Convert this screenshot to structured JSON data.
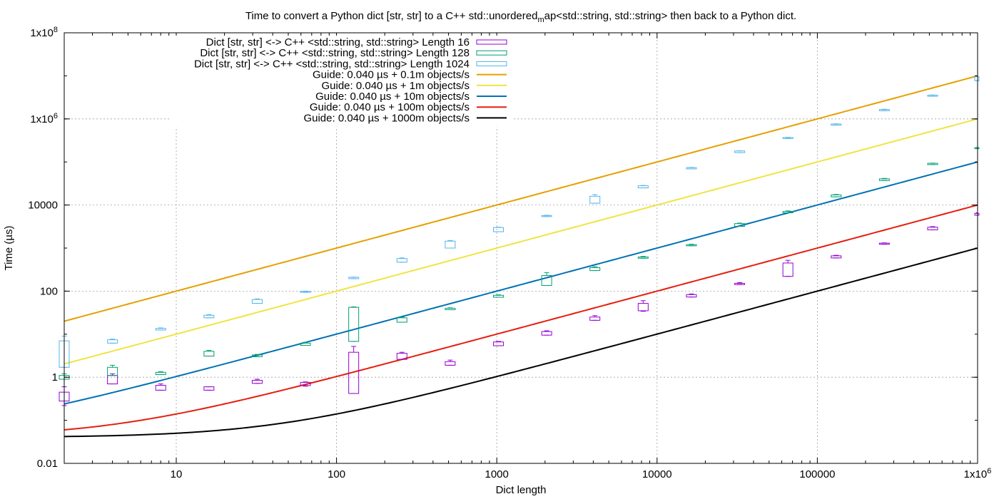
{
  "chart_data": {
    "type": "box",
    "title": "Time to convert a Python dict [str, str] to a C++ std::unordered",
    "title_subscript": "m",
    "title_rest": "ap<std::string, std::string> then back to a Python dict.",
    "xlabel": "Dict length",
    "ylabel": "Time (µs)",
    "x_scale": "log",
    "y_scale": "log",
    "xlim": [
      2,
      1000000
    ],
    "ylim": [
      0.01,
      100000000
    ],
    "grid": true,
    "legend_position": "top-left",
    "x_ticks": [
      {
        "value": 10,
        "label": "10",
        "mant": "",
        "exp": ""
      },
      {
        "value": 100,
        "label": "100",
        "mant": "",
        "exp": ""
      },
      {
        "value": 1000,
        "label": "1000",
        "mant": "",
        "exp": ""
      },
      {
        "value": 10000,
        "label": "10000",
        "mant": "",
        "exp": ""
      },
      {
        "value": 100000,
        "label": "100000",
        "mant": "",
        "exp": ""
      },
      {
        "value": 1000000,
        "label": "",
        "mant": "1x10",
        "exp": "6"
      }
    ],
    "y_ticks": [
      {
        "value": 0.01,
        "label": "0.01",
        "mant": "",
        "exp": ""
      },
      {
        "value": 1,
        "label": "1",
        "mant": "",
        "exp": ""
      },
      {
        "value": 100,
        "label": "100",
        "mant": "",
        "exp": ""
      },
      {
        "value": 10000,
        "label": "10000",
        "mant": "",
        "exp": ""
      },
      {
        "value": 1000000,
        "label": "",
        "mant": "1x10",
        "exp": "6"
      },
      {
        "value": 100000000,
        "label": "",
        "mant": "1x10",
        "exp": "8"
      }
    ],
    "box_series": [
      {
        "name": "Dict [str, str] <-> C++ <std::string, std::string> Length 16",
        "color": "#9400d3",
        "boxes": [
          {
            "x": 2,
            "low": 0.22,
            "q1": 0.28,
            "q3": 0.45,
            "high": 0.6
          },
          {
            "x": 4,
            "low": 0.7,
            "q1": 0.7,
            "q3": 1.1,
            "high": 1.2
          },
          {
            "x": 8,
            "low": 0.5,
            "q1": 0.5,
            "q3": 0.65,
            "high": 0.7
          },
          {
            "x": 16,
            "low": 0.5,
            "q1": 0.5,
            "q3": 0.6,
            "high": 0.6
          },
          {
            "x": 32,
            "low": 0.72,
            "q1": 0.72,
            "q3": 0.85,
            "high": 0.9
          },
          {
            "x": 64,
            "low": 0.62,
            "q1": 0.64,
            "q3": 0.76,
            "high": 0.78
          },
          {
            "x": 128,
            "low": 0.42,
            "q1": 0.42,
            "q3": 3.8,
            "high": 5.2
          },
          {
            "x": 256,
            "low": 2.6,
            "q1": 2.6,
            "q3": 3.6,
            "high": 3.8
          },
          {
            "x": 512,
            "low": 1.9,
            "q1": 1.9,
            "q3": 2.3,
            "high": 2.5
          },
          {
            "x": 1024,
            "low": 5.4,
            "q1": 5.4,
            "q3": 6.6,
            "high": 6.8
          },
          {
            "x": 2048,
            "low": 9.5,
            "q1": 9.5,
            "q3": 11.5,
            "high": 12
          },
          {
            "x": 4096,
            "low": 21,
            "q1": 21,
            "q3": 25,
            "high": 27
          },
          {
            "x": 8192,
            "low": 34,
            "q1": 35,
            "q3": 52,
            "high": 60
          },
          {
            "x": 16384,
            "low": 73,
            "q1": 73,
            "q3": 83,
            "high": 86
          },
          {
            "x": 32768,
            "low": 142,
            "q1": 142,
            "q3": 152,
            "high": 158
          },
          {
            "x": 65536,
            "low": 220,
            "q1": 220,
            "q3": 450,
            "high": 520
          },
          {
            "x": 131072,
            "low": 590,
            "q1": 590,
            "q3": 660,
            "high": 680
          },
          {
            "x": 262144,
            "low": 1230,
            "q1": 1230,
            "q3": 1300,
            "high": 1320
          },
          {
            "x": 524288,
            "low": 2650,
            "q1": 2650,
            "q3": 3050,
            "high": 3150
          },
          {
            "x": 1048576,
            "low": 5800,
            "q1": 5800,
            "q3": 6400,
            "high": 6600
          }
        ]
      },
      {
        "name": "Dict [str, str] <-> C++ <std::string, std::string> Length 128",
        "color": "#009e73",
        "boxes": [
          {
            "x": 2,
            "low": 0.9,
            "q1": 0.9,
            "q3": 1.1,
            "high": 1.2
          },
          {
            "x": 4,
            "low": 1.1,
            "q1": 1.1,
            "q3": 1.7,
            "high": 1.9
          },
          {
            "x": 8,
            "low": 1.15,
            "q1": 1.15,
            "q3": 1.3,
            "high": 1.35
          },
          {
            "x": 16,
            "low": 3.1,
            "q1": 3.1,
            "q3": 4.0,
            "high": 4.2
          },
          {
            "x": 32,
            "low": 3.0,
            "q1": 3.0,
            "q3": 3.3,
            "high": 3.4
          },
          {
            "x": 64,
            "low": 5.5,
            "q1": 5.5,
            "q3": 6.2,
            "high": 6.5
          },
          {
            "x": 128,
            "low": 6.8,
            "q1": 6.8,
            "q3": 42,
            "high": 43
          },
          {
            "x": 256,
            "low": 19,
            "q1": 19,
            "q3": 24,
            "high": 25
          },
          {
            "x": 512,
            "low": 37,
            "q1": 37,
            "q3": 40,
            "high": 41
          },
          {
            "x": 1024,
            "low": 72,
            "q1": 72,
            "q3": 80,
            "high": 82
          },
          {
            "x": 2048,
            "low": 135,
            "q1": 135,
            "q3": 230,
            "high": 270
          },
          {
            "x": 4096,
            "low": 300,
            "q1": 300,
            "q3": 350,
            "high": 370
          },
          {
            "x": 8192,
            "low": 580,
            "q1": 580,
            "q3": 620,
            "high": 640
          },
          {
            "x": 16384,
            "low": 1130,
            "q1": 1130,
            "q3": 1200,
            "high": 1230
          },
          {
            "x": 32768,
            "low": 3200,
            "q1": 3200,
            "q3": 3700,
            "high": 3800
          },
          {
            "x": 65536,
            "low": 6600,
            "q1": 6600,
            "q3": 7100,
            "high": 7300
          },
          {
            "x": 131072,
            "low": 15500,
            "q1": 15500,
            "q3": 17200,
            "high": 17600
          },
          {
            "x": 262144,
            "low": 37000,
            "q1": 37000,
            "q3": 40500,
            "high": 41500
          },
          {
            "x": 524288,
            "low": 87000,
            "q1": 87000,
            "q3": 93000,
            "high": 94000
          },
          {
            "x": 1048576,
            "low": 205000,
            "q1": 205000,
            "q3": 215000,
            "high": 218000
          }
        ]
      },
      {
        "name": "Dict [str, str] <-> C++ <std::string, std::string> Length 1024",
        "color": "#56b4e9",
        "boxes": [
          {
            "x": 2,
            "low": 1.7,
            "q1": 1.7,
            "q3": 7.0,
            "high": 9.0
          },
          {
            "x": 4,
            "low": 6.2,
            "q1": 6.2,
            "q3": 7.4,
            "high": 7.7
          },
          {
            "x": 8,
            "low": 12.5,
            "q1": 12.5,
            "q3": 13.6,
            "high": 14
          },
          {
            "x": 16,
            "low": 24,
            "q1": 24,
            "q3": 27.5,
            "high": 28.5
          },
          {
            "x": 32,
            "low": 52,
            "q1": 52,
            "q3": 64,
            "high": 66
          },
          {
            "x": 64,
            "low": 95,
            "q1": 95,
            "q3": 99,
            "high": 100
          },
          {
            "x": 128,
            "low": 195,
            "q1": 195,
            "q3": 210,
            "high": 212
          },
          {
            "x": 256,
            "low": 470,
            "q1": 470,
            "q3": 570,
            "high": 590
          },
          {
            "x": 512,
            "low": 1000,
            "q1": 1000,
            "q3": 1450,
            "high": 1500
          },
          {
            "x": 1024,
            "low": 2400,
            "q1": 2400,
            "q3": 3000,
            "high": 3050
          },
          {
            "x": 2048,
            "low": 5400,
            "q1": 5400,
            "q3": 5700,
            "high": 5800
          },
          {
            "x": 4096,
            "low": 11000,
            "q1": 11000,
            "q3": 16000,
            "high": 17500
          },
          {
            "x": 8192,
            "low": 25000,
            "q1": 25000,
            "q3": 28000,
            "high": 28500
          },
          {
            "x": 16384,
            "low": 69000,
            "q1": 69000,
            "q3": 74000,
            "high": 75000
          },
          {
            "x": 32768,
            "low": 165000,
            "q1": 165000,
            "q3": 180000,
            "high": 182000
          },
          {
            "x": 65536,
            "low": 350000,
            "q1": 350000,
            "q3": 370000,
            "high": 375000
          },
          {
            "x": 131072,
            "low": 720000,
            "q1": 720000,
            "q3": 760000,
            "high": 770000
          },
          {
            "x": 262144,
            "low": 1550000,
            "q1": 1550000,
            "q3": 1650000,
            "high": 1680000
          },
          {
            "x": 524288,
            "low": 3350000,
            "q1": 3350000,
            "q3": 3550000,
            "high": 3600000
          },
          {
            "x": 1048576,
            "low": 7700000,
            "q1": 7700000,
            "q3": 9600000,
            "high": 9800000
          }
        ]
      }
    ],
    "guide_series": [
      {
        "name": "Guide: 0.040 µs + 0.1m objects/s",
        "color": "#e69f00",
        "offset_us": 0.04,
        "rate_per_s": 100000
      },
      {
        "name": "Guide: 0.040 µs + 1m objects/s",
        "color": "#f0e442",
        "offset_us": 0.04,
        "rate_per_s": 1000000
      },
      {
        "name": "Guide: 0.040 µs + 10m objects/s",
        "color": "#0072b2",
        "offset_us": 0.04,
        "rate_per_s": 10000000
      },
      {
        "name": "Guide: 0.040 µs + 100m objects/s",
        "color": "#e51e10",
        "offset_us": 0.04,
        "rate_per_s": 100000000
      },
      {
        "name": "Guide: 0.040 µs + 1000m objects/s",
        "color": "#000000",
        "offset_us": 0.04,
        "rate_per_s": 1000000000
      }
    ]
  }
}
